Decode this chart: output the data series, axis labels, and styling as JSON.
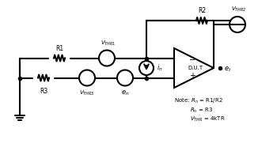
{
  "bg_color": "#ffffff",
  "line_color": "#000000",
  "line_width": 1.5,
  "thin_lw": 1.0,
  "note_text": "Note: Rₙ = R1/R2\n      Rₙ = R3\n      Vₚᴴᴱ = 4kTR",
  "title": "",
  "figsize": [
    3.5,
    1.91
  ],
  "dpi": 100
}
